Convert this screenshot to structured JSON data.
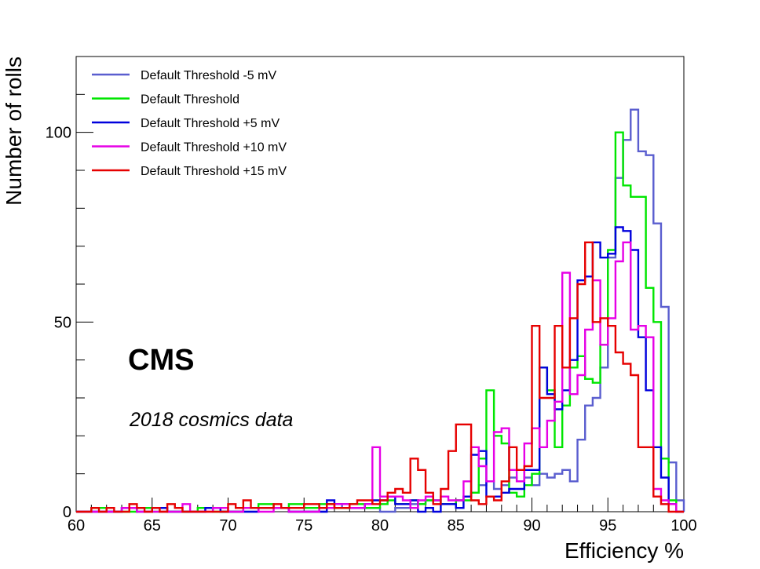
{
  "chart_data": {
    "type": "histogram-step",
    "xlabel": "Efficiency %",
    "ylabel": "Number of rolls",
    "xlim": [
      60,
      100
    ],
    "ylim": [
      0,
      120
    ],
    "bin_width": 0.5,
    "x_ticks": [
      60,
      65,
      70,
      75,
      80,
      85,
      90,
      95,
      100
    ],
    "x_tick_labels": [
      "60",
      "65",
      "70",
      "75",
      "80",
      "85",
      "90",
      "95",
      "100"
    ],
    "y_ticks": [
      0,
      50,
      100
    ],
    "y_tick_labels": [
      "0",
      "50",
      "100"
    ],
    "legend_position": "top-left",
    "annotations": {
      "experiment": "CMS",
      "subtitle": "2018 cosmics data"
    },
    "series": [
      {
        "name": "Default Threshold -5 mV",
        "color": "#5a5ecf",
        "points": [
          [
            60,
            0
          ],
          [
            61,
            0
          ],
          [
            63,
            1
          ],
          [
            66,
            0
          ],
          [
            68.5,
            1
          ],
          [
            69.5,
            0
          ],
          [
            72,
            1
          ],
          [
            74,
            0
          ],
          [
            76.5,
            2
          ],
          [
            77.5,
            1
          ],
          [
            80,
            0
          ],
          [
            81,
            1
          ],
          [
            82,
            2
          ],
          [
            83,
            3
          ],
          [
            84,
            2
          ],
          [
            85,
            3
          ],
          [
            85.5,
            4
          ],
          [
            86,
            5
          ],
          [
            86.5,
            7
          ],
          [
            87,
            8
          ],
          [
            87.5,
            6
          ],
          [
            88,
            7
          ],
          [
            88.5,
            9
          ],
          [
            89,
            8
          ],
          [
            89.5,
            9
          ],
          [
            90,
            7
          ],
          [
            90.5,
            10
          ],
          [
            91,
            9
          ],
          [
            91.5,
            10
          ],
          [
            92,
            11
          ],
          [
            92.5,
            8
          ],
          [
            93,
            19
          ],
          [
            93.5,
            28
          ],
          [
            94,
            30
          ],
          [
            94.5,
            38
          ],
          [
            95,
            67
          ],
          [
            95.5,
            88
          ],
          [
            96,
            98
          ],
          [
            96.5,
            106
          ],
          [
            97,
            95
          ],
          [
            97.5,
            94
          ],
          [
            98,
            76
          ],
          [
            98.5,
            54
          ],
          [
            99,
            13
          ],
          [
            99.5,
            3
          ],
          [
            100,
            0
          ]
        ]
      },
      {
        "name": "Default Threshold",
        "color": "#00e600",
        "points": [
          [
            60,
            0
          ],
          [
            61,
            1
          ],
          [
            62,
            0
          ],
          [
            64,
            1
          ],
          [
            65,
            0
          ],
          [
            68,
            1
          ],
          [
            69,
            0
          ],
          [
            71,
            1
          ],
          [
            72,
            2
          ],
          [
            73,
            1
          ],
          [
            74,
            2
          ],
          [
            75,
            1
          ],
          [
            76,
            2
          ],
          [
            77,
            1
          ],
          [
            78,
            2
          ],
          [
            79,
            1
          ],
          [
            80,
            2
          ],
          [
            80.5,
            3
          ],
          [
            81,
            2
          ],
          [
            82,
            3
          ],
          [
            82.5,
            2
          ],
          [
            83,
            3
          ],
          [
            84,
            2
          ],
          [
            85,
            3
          ],
          [
            86,
            5
          ],
          [
            86.5,
            14
          ],
          [
            87,
            32
          ],
          [
            87.5,
            20
          ],
          [
            88,
            18
          ],
          [
            88.5,
            5
          ],
          [
            89,
            4
          ],
          [
            89.5,
            7
          ],
          [
            90,
            10
          ],
          [
            90.5,
            38
          ],
          [
            91,
            32
          ],
          [
            91.5,
            17
          ],
          [
            92,
            28
          ],
          [
            92.5,
            38
          ],
          [
            93,
            41
          ],
          [
            93.5,
            35
          ],
          [
            94,
            34
          ],
          [
            94.5,
            44
          ],
          [
            95,
            69
          ],
          [
            95.5,
            100
          ],
          [
            96,
            86
          ],
          [
            96.5,
            83
          ],
          [
            97,
            83
          ],
          [
            97.5,
            59
          ],
          [
            98,
            50
          ],
          [
            98.5,
            14
          ],
          [
            99,
            3
          ],
          [
            99.5,
            0
          ],
          [
            100,
            0
          ]
        ]
      },
      {
        "name": "Default Threshold +5 mV",
        "color": "#0000dd",
        "points": [
          [
            60,
            0
          ],
          [
            61,
            0
          ],
          [
            63,
            1
          ],
          [
            64,
            0
          ],
          [
            65,
            1
          ],
          [
            66,
            0
          ],
          [
            68.5,
            1
          ],
          [
            69.5,
            0
          ],
          [
            72,
            1
          ],
          [
            74,
            0
          ],
          [
            76.5,
            3
          ],
          [
            77,
            2
          ],
          [
            78,
            1
          ],
          [
            79,
            2
          ],
          [
            79.5,
            3
          ],
          [
            80,
            3
          ],
          [
            80.5,
            4
          ],
          [
            81,
            2
          ],
          [
            82,
            3
          ],
          [
            82.5,
            0
          ],
          [
            83,
            1
          ],
          [
            83.5,
            0
          ],
          [
            84,
            2
          ],
          [
            85,
            1
          ],
          [
            85.5,
            4
          ],
          [
            86,
            15
          ],
          [
            86.5,
            16
          ],
          [
            87,
            4
          ],
          [
            88,
            5
          ],
          [
            88.5,
            6
          ],
          [
            89,
            6
          ],
          [
            89.5,
            11
          ],
          [
            90,
            11
          ],
          [
            90.5,
            38
          ],
          [
            91,
            31
          ],
          [
            91.5,
            27
          ],
          [
            92,
            32
          ],
          [
            92.5,
            40
          ],
          [
            93,
            61
          ],
          [
            93.5,
            62
          ],
          [
            94,
            71
          ],
          [
            94.5,
            67
          ],
          [
            95,
            68
          ],
          [
            95.5,
            75
          ],
          [
            96,
            74
          ],
          [
            96.5,
            69
          ],
          [
            97,
            46
          ],
          [
            97.5,
            32
          ],
          [
            98,
            17
          ],
          [
            98.5,
            9
          ],
          [
            99,
            2
          ],
          [
            99.5,
            0
          ],
          [
            100,
            0
          ]
        ]
      },
      {
        "name": "Default Threshold +10 mV",
        "color": "#e600e6",
        "points": [
          [
            60,
            0
          ],
          [
            61,
            0
          ],
          [
            63,
            1
          ],
          [
            64,
            0
          ],
          [
            67,
            2
          ],
          [
            67.5,
            0
          ],
          [
            69,
            1
          ],
          [
            70,
            0
          ],
          [
            71,
            1
          ],
          [
            72,
            0
          ],
          [
            73,
            1
          ],
          [
            74,
            0
          ],
          [
            76,
            1
          ],
          [
            77,
            2
          ],
          [
            78,
            1
          ],
          [
            79,
            2
          ],
          [
            79.5,
            17
          ],
          [
            80,
            4
          ],
          [
            81,
            4
          ],
          [
            81.5,
            3
          ],
          [
            82,
            1
          ],
          [
            82.5,
            3
          ],
          [
            83,
            4
          ],
          [
            83.5,
            3
          ],
          [
            84,
            4
          ],
          [
            84.5,
            3
          ],
          [
            85,
            3
          ],
          [
            85.5,
            8
          ],
          [
            86,
            17
          ],
          [
            86.5,
            12
          ],
          [
            87,
            8
          ],
          [
            87.5,
            21
          ],
          [
            88,
            22
          ],
          [
            88.5,
            11
          ],
          [
            89,
            8
          ],
          [
            89.5,
            18
          ],
          [
            90,
            22
          ],
          [
            90.5,
            17
          ],
          [
            91,
            24
          ],
          [
            91.5,
            29
          ],
          [
            92,
            63
          ],
          [
            92.5,
            31
          ],
          [
            93,
            36
          ],
          [
            93.5,
            48
          ],
          [
            94,
            61
          ],
          [
            94.5,
            44
          ],
          [
            95,
            51
          ],
          [
            95.5,
            66
          ],
          [
            96,
            71
          ],
          [
            96.5,
            48
          ],
          [
            97,
            49
          ],
          [
            97.5,
            46
          ],
          [
            98,
            6
          ],
          [
            98.5,
            3
          ],
          [
            99,
            2
          ],
          [
            99.5,
            0
          ],
          [
            100,
            0
          ]
        ]
      },
      {
        "name": "Default Threshold +15 mV",
        "color": "#e60000",
        "points": [
          [
            60,
            0
          ],
          [
            61,
            1
          ],
          [
            61.5,
            0
          ],
          [
            62,
            1
          ],
          [
            62.5,
            0
          ],
          [
            63.5,
            2
          ],
          [
            64,
            1
          ],
          [
            64.5,
            0
          ],
          [
            65,
            1
          ],
          [
            65.5,
            0
          ],
          [
            66,
            2
          ],
          [
            66.5,
            1
          ],
          [
            67,
            0
          ],
          [
            70,
            2
          ],
          [
            70.5,
            1
          ],
          [
            71,
            3
          ],
          [
            71.5,
            1
          ],
          [
            73,
            2
          ],
          [
            73.5,
            1
          ],
          [
            75,
            2
          ],
          [
            76,
            1
          ],
          [
            76.5,
            2
          ],
          [
            77,
            1
          ],
          [
            78,
            2
          ],
          [
            78.5,
            3
          ],
          [
            79.5,
            2
          ],
          [
            80,
            3
          ],
          [
            80.5,
            5
          ],
          [
            81,
            6
          ],
          [
            81.5,
            5
          ],
          [
            82,
            14
          ],
          [
            82.5,
            11
          ],
          [
            83,
            5
          ],
          [
            83.5,
            2
          ],
          [
            84,
            6
          ],
          [
            84.5,
            16
          ],
          [
            85,
            23
          ],
          [
            86,
            3
          ],
          [
            86.5,
            2
          ],
          [
            87,
            4
          ],
          [
            87.5,
            3
          ],
          [
            88,
            8
          ],
          [
            88.5,
            17
          ],
          [
            89,
            11
          ],
          [
            89.5,
            12
          ],
          [
            90,
            49
          ],
          [
            90.5,
            30
          ],
          [
            91,
            30
          ],
          [
            91.5,
            49
          ],
          [
            92,
            38
          ],
          [
            92.5,
            51
          ],
          [
            93,
            60
          ],
          [
            93.5,
            71
          ],
          [
            94,
            50
          ],
          [
            94.5,
            51
          ],
          [
            95,
            49
          ],
          [
            95.5,
            42
          ],
          [
            96,
            39
          ],
          [
            96.5,
            36
          ],
          [
            97,
            17
          ],
          [
            97.5,
            17
          ],
          [
            98,
            4
          ],
          [
            98.5,
            2
          ],
          [
            99,
            0
          ],
          [
            100,
            0
          ]
        ]
      }
    ]
  }
}
